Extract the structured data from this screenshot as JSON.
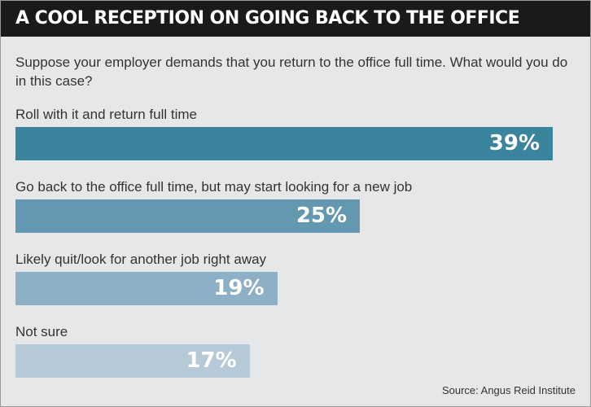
{
  "header": {
    "title": "A COOL RECEPTION ON GOING BACK TO THE OFFICE"
  },
  "question": "Suppose your employer demands that you return to the office full time. What would you do in this case?",
  "source": "Source: Angus Reid Institute",
  "colors": {
    "background": "#e6e7e9",
    "title_bar": "#1a1a1a",
    "bar_colors": [
      "#3a849e",
      "#6497b0",
      "#8db0c6",
      "#b5c9d7"
    ]
  },
  "chart_data": {
    "type": "bar",
    "orientation": "horizontal",
    "categories": [
      "Roll with it and return full time",
      "Go back to the office full time, but may start looking for a new job",
      "Likely quit/look for another job right away",
      "Not sure"
    ],
    "values": [
      39,
      25,
      19,
      17
    ],
    "value_labels": [
      "39%",
      "25%",
      "19%",
      "17%"
    ],
    "unit": "%"
  }
}
